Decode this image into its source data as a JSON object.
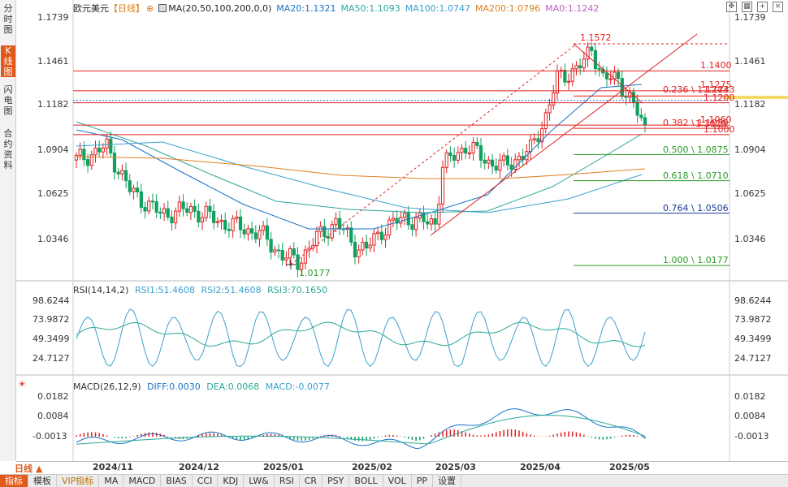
{
  "sidebar": [
    {
      "label": "分时图",
      "active": false
    },
    {
      "label": "K线图",
      "active": true
    },
    {
      "label": "闪电图",
      "active": false
    },
    {
      "label": "合约资料",
      "active": false
    }
  ],
  "header": {
    "symbol": "欧元美元",
    "period": "【日线】",
    "ma_title": "MA(20,50,100,200,0,0)",
    "ma20": "MA20:1.1321",
    "ma50": "MA50:1.1093",
    "ma100": "MA100:1.0747",
    "ma200": "MA200:1.0796",
    "ma0": "MA0:1.1242"
  },
  "colors": {
    "up": "#e02020",
    "down": "#10a060",
    "ma20": "#1a73c8",
    "ma50": "#2aa898",
    "ma100": "#3aa0d0",
    "ma200": "#e08020",
    "fib_green": "#2a9a2a",
    "fib_blue": "#1a3a9a",
    "accent": "#e05a1a"
  },
  "price_axis": [
    "1.1739",
    "1.1461",
    "1.1182",
    "1.0904",
    "1.0625",
    "1.0346"
  ],
  "price_labels": {
    "high": "1.1572",
    "low": "1.0177",
    "h1": "1.1400",
    "h2": "1.1275",
    "h3": "1.1200",
    "h4": "1.1060",
    "h5": "1.1000",
    "h3b": "1.1243",
    "h4b": "1.1029"
  },
  "fibs": [
    {
      "label": "0.236 \\ 1.1243"
    },
    {
      "label": "0.382 \\ 1.1039"
    },
    {
      "label": "0.500 \\ 1.0875"
    },
    {
      "label": "0.618 \\ 1.0710"
    },
    {
      "label": "0.764 \\ 1.0506"
    },
    {
      "label": "1.000 \\ 1.0177"
    }
  ],
  "rsi": {
    "title": "RSI(14,14,2)",
    "rsi1": "RSI1:51.4608",
    "rsi2": "RSI2:51.4608",
    "rsi3": "RSI3:70.1650",
    "axis": [
      "98.6244",
      "73.9872",
      "49.3499",
      "24.7127"
    ]
  },
  "macd": {
    "title": "MACD(26,12,9)",
    "diff": "DIFF:0.0030",
    "dea": "DEA:0.0068",
    "macd": "MACD:-0.0077",
    "axis": [
      "0.0182",
      "0.0084",
      "-0.0013"
    ]
  },
  "dates": [
    "2024/11",
    "2024/12",
    "2025/01",
    "2025/02",
    "2025/03",
    "2025/04",
    "2025/05"
  ],
  "period_selector": "日线",
  "tabs": [
    "指标",
    "模板",
    "VIP指标",
    "MA",
    "MACD",
    "BIAS",
    "CCI",
    "KDJ",
    "LW&",
    "RSI",
    "CR",
    "PSY",
    "BOLL",
    "VOL",
    "PP",
    "设置"
  ]
}
